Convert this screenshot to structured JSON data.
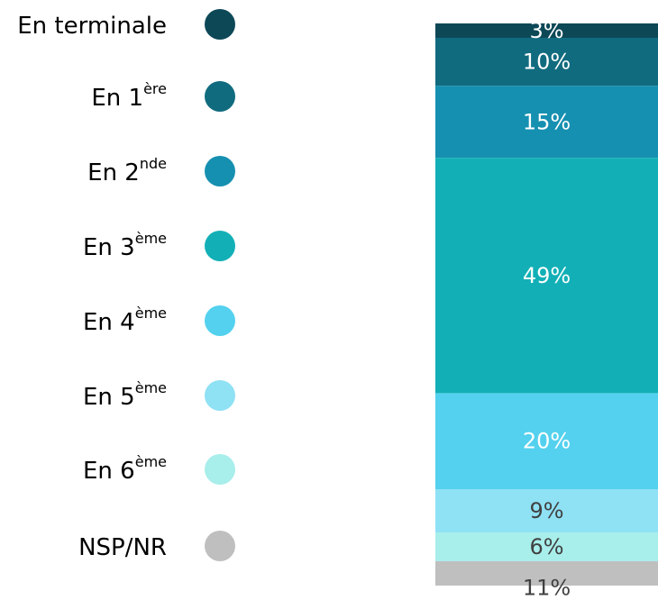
{
  "chart_data": {
    "type": "stacked_bar",
    "orientation": "vertical",
    "stack_order": "top_down",
    "series": [
      {
        "name": "En terminale",
        "color": "#0d4857",
        "label_color": "#ffffff",
        "values": [
          3
        ],
        "value_labels": [
          "3%"
        ]
      },
      {
        "name": "En 1",
        "name_sup": "ère",
        "color": "#116b7f",
        "label_color": "#ffffff",
        "values": [
          10
        ],
        "value_labels": [
          "10%"
        ]
      },
      {
        "name": "En 2",
        "name_sup": "nde",
        "color": "#1690b1",
        "label_color": "#ffffff",
        "values": [
          15
        ],
        "value_labels": [
          "15%"
        ]
      },
      {
        "name": "En 3",
        "name_sup": "ème",
        "color": "#12b0b6",
        "label_color": "#ffffff",
        "values": [
          49
        ],
        "value_labels": [
          "49%"
        ]
      },
      {
        "name": "En 4",
        "name_sup": "ème",
        "color": "#53d1ee",
        "label_color": "#ffffff",
        "values": [
          20
        ],
        "value_labels": [
          "20%"
        ]
      },
      {
        "name": "En 5",
        "name_sup": "ème",
        "color": "#8fe1f4",
        "label_color": "#404040",
        "values": [
          9
        ],
        "value_labels": [
          "9%"
        ]
      },
      {
        "name": "En 6",
        "name_sup": "ème",
        "color": "#a8eeeb",
        "label_color": "#404040",
        "values": [
          6
        ],
        "value_labels": [
          "6%"
        ]
      },
      {
        "name": "NSP/NR",
        "color": "#bfbfbf",
        "label_color": "#404040",
        "values": [
          11
        ],
        "value_labels": [
          "11%"
        ]
      }
    ]
  }
}
